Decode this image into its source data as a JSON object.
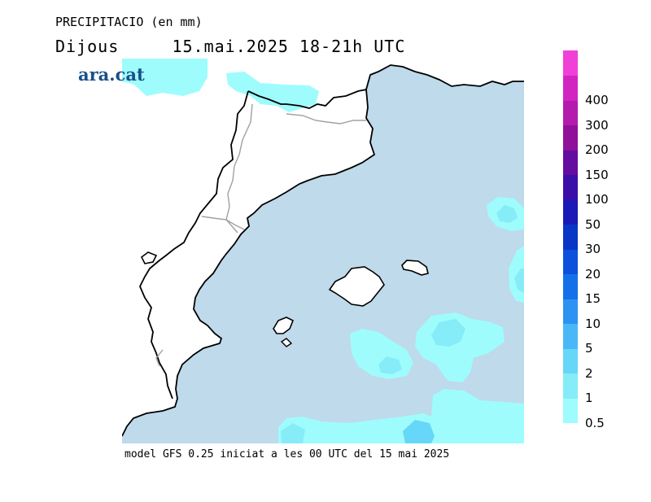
{
  "header": {
    "title": "PRECIPITACIO (en mm)",
    "day": "Dijous",
    "datetime": "15.mai.2025 18-21h UTC"
  },
  "logo": {
    "text": "ara.cat"
  },
  "footer": {
    "text": "model GFS 0.25 iniciat a les 00 UTC del 15 mai 2025"
  },
  "legend": {
    "levels": [
      {
        "label": "0.5",
        "color": "#9ffcfc"
      },
      {
        "label": "1",
        "color": "#86ecf8"
      },
      {
        "label": "2",
        "color": "#66d7f8"
      },
      {
        "label": "5",
        "color": "#4ab8f6"
      },
      {
        "label": "10",
        "color": "#2c93f2"
      },
      {
        "label": "15",
        "color": "#1470e8"
      },
      {
        "label": "20",
        "color": "#0c50dc"
      },
      {
        "label": "30",
        "color": "#0a36c6"
      },
      {
        "label": "50",
        "color": "#1a1ab6"
      },
      {
        "label": "100",
        "color": "#3c0ea8"
      },
      {
        "label": "150",
        "color": "#640ca0"
      },
      {
        "label": "200",
        "color": "#90109a"
      },
      {
        "label": "300",
        "color": "#b41aac"
      },
      {
        "label": "400",
        "color": "#d224c0"
      },
      {
        "label": "",
        "color": "#f040d8"
      }
    ]
  },
  "map": {
    "sea_color": "#bedaeb",
    "land_color": "#ffffff",
    "coast_color": "#000000",
    "border_color": "#a0a0a0"
  }
}
